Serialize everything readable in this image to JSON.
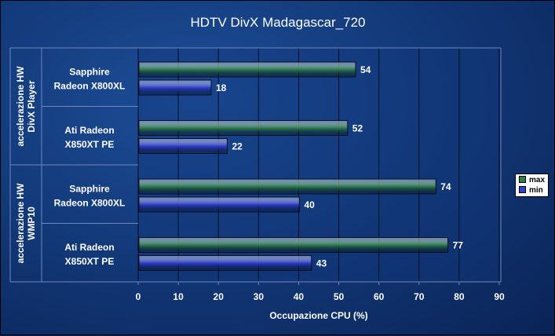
{
  "chart_data": {
    "type": "bar",
    "orientation": "horizontal",
    "title": "HDTV DivX Madagascar_720",
    "xlabel": "Occupazione CPU (%)",
    "xlim": [
      0,
      90
    ],
    "xticks": [
      "0",
      "10",
      "20",
      "30",
      "40",
      "50",
      "60",
      "70",
      "80",
      "90"
    ],
    "grid": true,
    "legend_position": "right",
    "groups": [
      {
        "label_lines": [
          "accelerazione HW",
          "DivX Player"
        ]
      },
      {
        "label_lines": [
          "accelerazione HW",
          "WMP10"
        ]
      }
    ],
    "categories": [
      {
        "label_lines": [
          "Sapphire",
          "Radeon X800XL"
        ],
        "group": 0
      },
      {
        "label_lines": [
          "Ati Radeon",
          "X850XT PE"
        ],
        "group": 0
      },
      {
        "label_lines": [
          "Sapphire",
          "Radeon X800XL"
        ],
        "group": 1
      },
      {
        "label_lines": [
          "Ati Radeon",
          "X850XT PE"
        ],
        "group": 1
      }
    ],
    "series": [
      {
        "name": "max",
        "color": "#2f7d4f",
        "values": [
          54,
          52,
          74,
          77
        ]
      },
      {
        "name": "min",
        "color": "#2f3fd0",
        "values": [
          18,
          22,
          40,
          43
        ]
      }
    ]
  }
}
